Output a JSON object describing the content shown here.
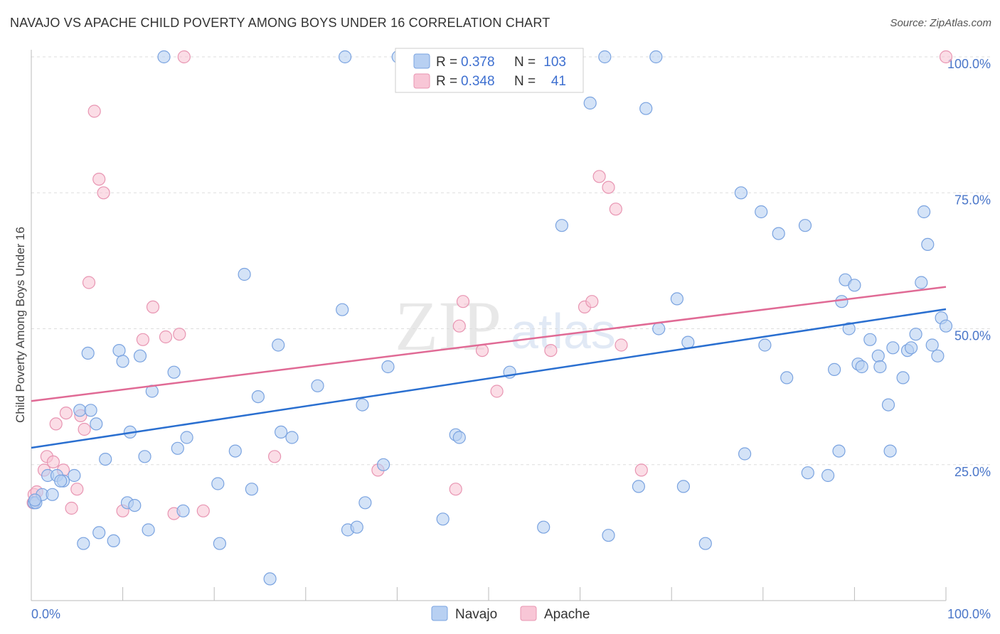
{
  "title": "NAVAJO VS APACHE CHILD POVERTY AMONG BOYS UNDER 16 CORRELATION CHART",
  "source": "Source: ZipAtlas.com",
  "watermark": {
    "zip": "ZIP",
    "atlas": "atlas"
  },
  "legend": {
    "rows": [
      {
        "r_label": "R =",
        "r_value": "0.378",
        "n_label": "N =",
        "n_value": "103"
      },
      {
        "r_label": "R =",
        "r_value": "0.348",
        "n_label": "N =",
        "n_value": "41"
      }
    ]
  },
  "colors": {
    "navajo_fill": "#b8d0f2",
    "navajo_stroke": "#7aa3e0",
    "navajo_line": "#2a6fd0",
    "apache_fill": "#f8c6d6",
    "apache_stroke": "#e895b2",
    "apache_line": "#e06a95",
    "tick_label": "#4a76c9",
    "grid": "#dddddd"
  },
  "chart_data": {
    "type": "scatter",
    "title": "NAVAJO VS APACHE CHILD POVERTY AMONG BOYS UNDER 16 CORRELATION CHART",
    "xlabel": "",
    "ylabel": "Child Poverty Among Boys Under 16",
    "xlim": [
      0,
      100
    ],
    "ylim": [
      0,
      102
    ],
    "x_tick_labels": [
      {
        "value": 0,
        "label": "0.0%"
      },
      {
        "value": 100,
        "label": "100.0%"
      }
    ],
    "y_tick_labels": [
      {
        "value": 25,
        "label": "25.0%"
      },
      {
        "value": 50,
        "label": "50.0%"
      },
      {
        "value": 75,
        "label": "75.0%"
      },
      {
        "value": 100,
        "label": "100.0%"
      }
    ],
    "grid": true,
    "legend_position": "top-center",
    "series": [
      {
        "name": "Navajo",
        "color": "#7aa3e0",
        "trend": {
          "x": [
            0,
            100
          ],
          "y": [
            28.1,
            53.6
          ]
        },
        "points": [
          [
            0.3,
            18
          ],
          [
            0.5,
            18
          ],
          [
            1.2,
            19.5
          ],
          [
            2.3,
            19.5
          ],
          [
            1.8,
            23
          ],
          [
            2.8,
            23
          ],
          [
            3.5,
            22
          ],
          [
            4.7,
            23
          ],
          [
            5.3,
            35
          ],
          [
            6.5,
            35
          ],
          [
            7.1,
            32.5
          ],
          [
            6.2,
            45.5
          ],
          [
            8.1,
            26
          ],
          [
            7.4,
            12.5
          ],
          [
            5.7,
            10.5
          ],
          [
            9.0,
            11
          ],
          [
            9.6,
            46
          ],
          [
            10.0,
            44
          ],
          [
            10.5,
            18
          ],
          [
            10.8,
            31
          ],
          [
            11.3,
            17.5
          ],
          [
            11.9,
            45
          ],
          [
            12.4,
            26.5
          ],
          [
            12.8,
            13
          ],
          [
            13.2,
            38.5
          ],
          [
            14.5,
            100
          ],
          [
            15.6,
            42
          ],
          [
            16.0,
            28
          ],
          [
            16.6,
            16.5
          ],
          [
            17.0,
            30
          ],
          [
            20.4,
            21.5
          ],
          [
            20.6,
            10.5
          ],
          [
            22.3,
            27.5
          ],
          [
            23.3,
            60
          ],
          [
            24.1,
            20.5
          ],
          [
            24.8,
            37.5
          ],
          [
            26.1,
            4
          ],
          [
            27.0,
            47
          ],
          [
            27.3,
            31
          ],
          [
            28.5,
            30
          ],
          [
            31.3,
            39.5
          ],
          [
            34.0,
            53.5
          ],
          [
            34.3,
            100
          ],
          [
            34.6,
            13
          ],
          [
            35.6,
            13.5
          ],
          [
            36.2,
            36
          ],
          [
            36.5,
            18
          ],
          [
            38.5,
            25
          ],
          [
            39.0,
            43
          ],
          [
            40.1,
            100
          ],
          [
            45.0,
            15
          ],
          [
            46.4,
            30.5
          ],
          [
            46.8,
            30
          ],
          [
            52.3,
            42
          ],
          [
            56.0,
            13.5
          ],
          [
            58.0,
            69
          ],
          [
            61.1,
            91.5
          ],
          [
            62.7,
            100
          ],
          [
            63.1,
            12
          ],
          [
            66.4,
            21
          ],
          [
            67.2,
            90.5
          ],
          [
            68.3,
            100
          ],
          [
            68.6,
            50
          ],
          [
            70.6,
            55.5
          ],
          [
            71.3,
            21
          ],
          [
            71.8,
            47.5
          ],
          [
            73.7,
            10.5
          ],
          [
            77.6,
            75
          ],
          [
            78.0,
            27
          ],
          [
            79.8,
            71.5
          ],
          [
            80.2,
            47
          ],
          [
            81.7,
            67.5
          ],
          [
            82.6,
            41
          ],
          [
            84.6,
            69
          ],
          [
            84.9,
            23.5
          ],
          [
            87.1,
            23
          ],
          [
            87.8,
            42.5
          ],
          [
            88.3,
            27.5
          ],
          [
            88.6,
            55
          ],
          [
            89.0,
            59
          ],
          [
            89.4,
            50
          ],
          [
            90.0,
            58
          ],
          [
            90.4,
            43.5
          ],
          [
            90.8,
            43
          ],
          [
            91.7,
            48
          ],
          [
            92.6,
            45
          ],
          [
            92.8,
            43
          ],
          [
            93.7,
            36
          ],
          [
            93.9,
            27.5
          ],
          [
            94.2,
            46.5
          ],
          [
            95.3,
            41
          ],
          [
            95.8,
            46
          ],
          [
            96.2,
            46.5
          ],
          [
            96.7,
            49
          ],
          [
            97.3,
            58.5
          ],
          [
            97.6,
            71.5
          ],
          [
            98.0,
            65.5
          ],
          [
            98.5,
            47
          ],
          [
            99.1,
            45
          ],
          [
            99.5,
            52
          ],
          [
            100.0,
            50.5
          ],
          [
            0.4,
            18.5
          ],
          [
            3.2,
            22
          ]
        ]
      },
      {
        "name": "Apache",
        "color": "#e895b2",
        "trend": {
          "x": [
            0,
            100
          ],
          "y": [
            36.7,
            57.7
          ]
        },
        "points": [
          [
            0.2,
            18
          ],
          [
            0.3,
            19.5
          ],
          [
            0.6,
            20
          ],
          [
            1.4,
            24
          ],
          [
            1.7,
            26.5
          ],
          [
            2.4,
            25.5
          ],
          [
            2.7,
            32.5
          ],
          [
            3.5,
            24
          ],
          [
            3.8,
            34.5
          ],
          [
            4.4,
            17
          ],
          [
            5.0,
            20.5
          ],
          [
            5.4,
            34
          ],
          [
            5.8,
            31.5
          ],
          [
            6.3,
            58.5
          ],
          [
            6.9,
            90
          ],
          [
            7.4,
            77.5
          ],
          [
            7.9,
            75
          ],
          [
            10.0,
            16.5
          ],
          [
            12.2,
            48
          ],
          [
            13.3,
            54
          ],
          [
            14.7,
            48.5
          ],
          [
            15.6,
            16
          ],
          [
            16.2,
            49
          ],
          [
            16.7,
            100
          ],
          [
            18.8,
            16.5
          ],
          [
            26.6,
            26.5
          ],
          [
            37.9,
            24
          ],
          [
            46.4,
            20.5
          ],
          [
            46.8,
            50.5
          ],
          [
            47.2,
            55
          ],
          [
            49.3,
            46
          ],
          [
            50.9,
            38.5
          ],
          [
            56.8,
            46
          ],
          [
            60.5,
            54
          ],
          [
            61.3,
            55
          ],
          [
            62.1,
            78
          ],
          [
            63.1,
            76
          ],
          [
            63.9,
            72
          ],
          [
            64.5,
            47
          ],
          [
            66.7,
            24
          ],
          [
            100.0,
            100
          ]
        ]
      }
    ]
  },
  "bottom_legend": [
    {
      "label": "Navajo"
    },
    {
      "label": "Apache"
    }
  ]
}
